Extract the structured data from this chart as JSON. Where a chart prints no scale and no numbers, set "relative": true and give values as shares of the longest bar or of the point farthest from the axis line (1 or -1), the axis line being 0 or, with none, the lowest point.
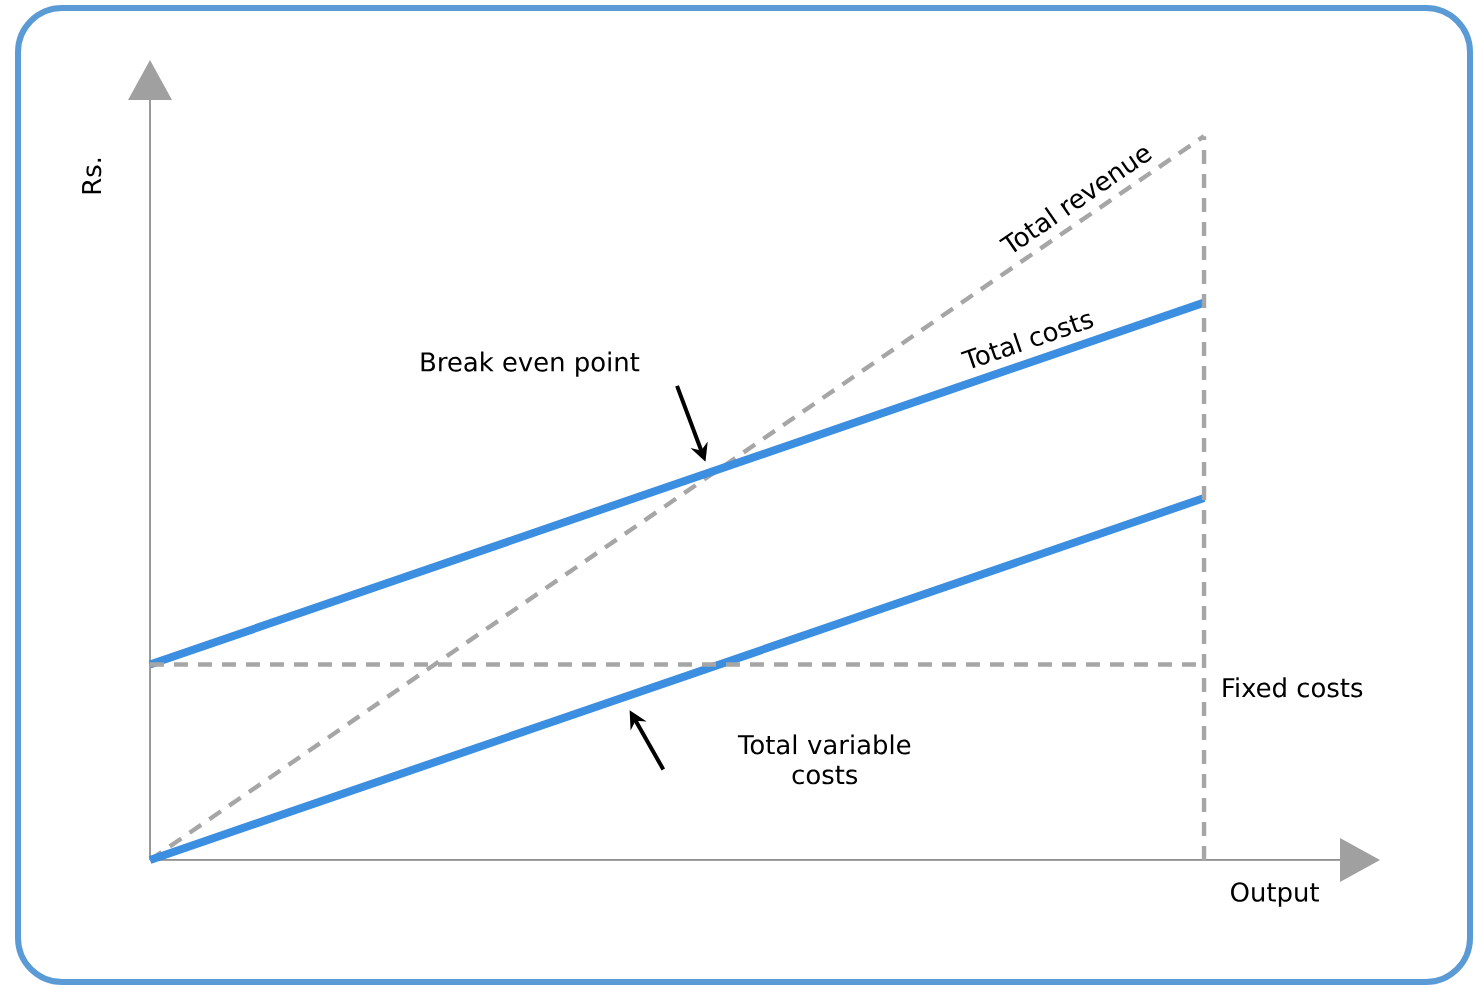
{
  "chart_data": {
    "type": "line",
    "relative": true,
    "xlabel": "Output",
    "ylabel": "Rs.",
    "categories": [
      null,
      null
    ],
    "series": [
      {
        "name": "Total revenue",
        "color": "#a6a6a6",
        "line_style": "dashed",
        "values": [
          0,
          1
        ]
      },
      {
        "name": "Total costs",
        "color": "#3b8ee0",
        "line_style": "solid",
        "values": [
          0.27,
          0.77
        ]
      },
      {
        "name": "Total variable costs",
        "color": "#3b8ee0",
        "line_style": "solid",
        "values": [
          0,
          0.5
        ]
      },
      {
        "name": "Fixed costs",
        "color": "#a6a6a6",
        "line_style": "dashed",
        "values": [
          0.27,
          0.27
        ]
      }
    ],
    "annotations": [
      "Break even point"
    ],
    "marker": "none",
    "legend": false,
    "grid": false
  }
}
